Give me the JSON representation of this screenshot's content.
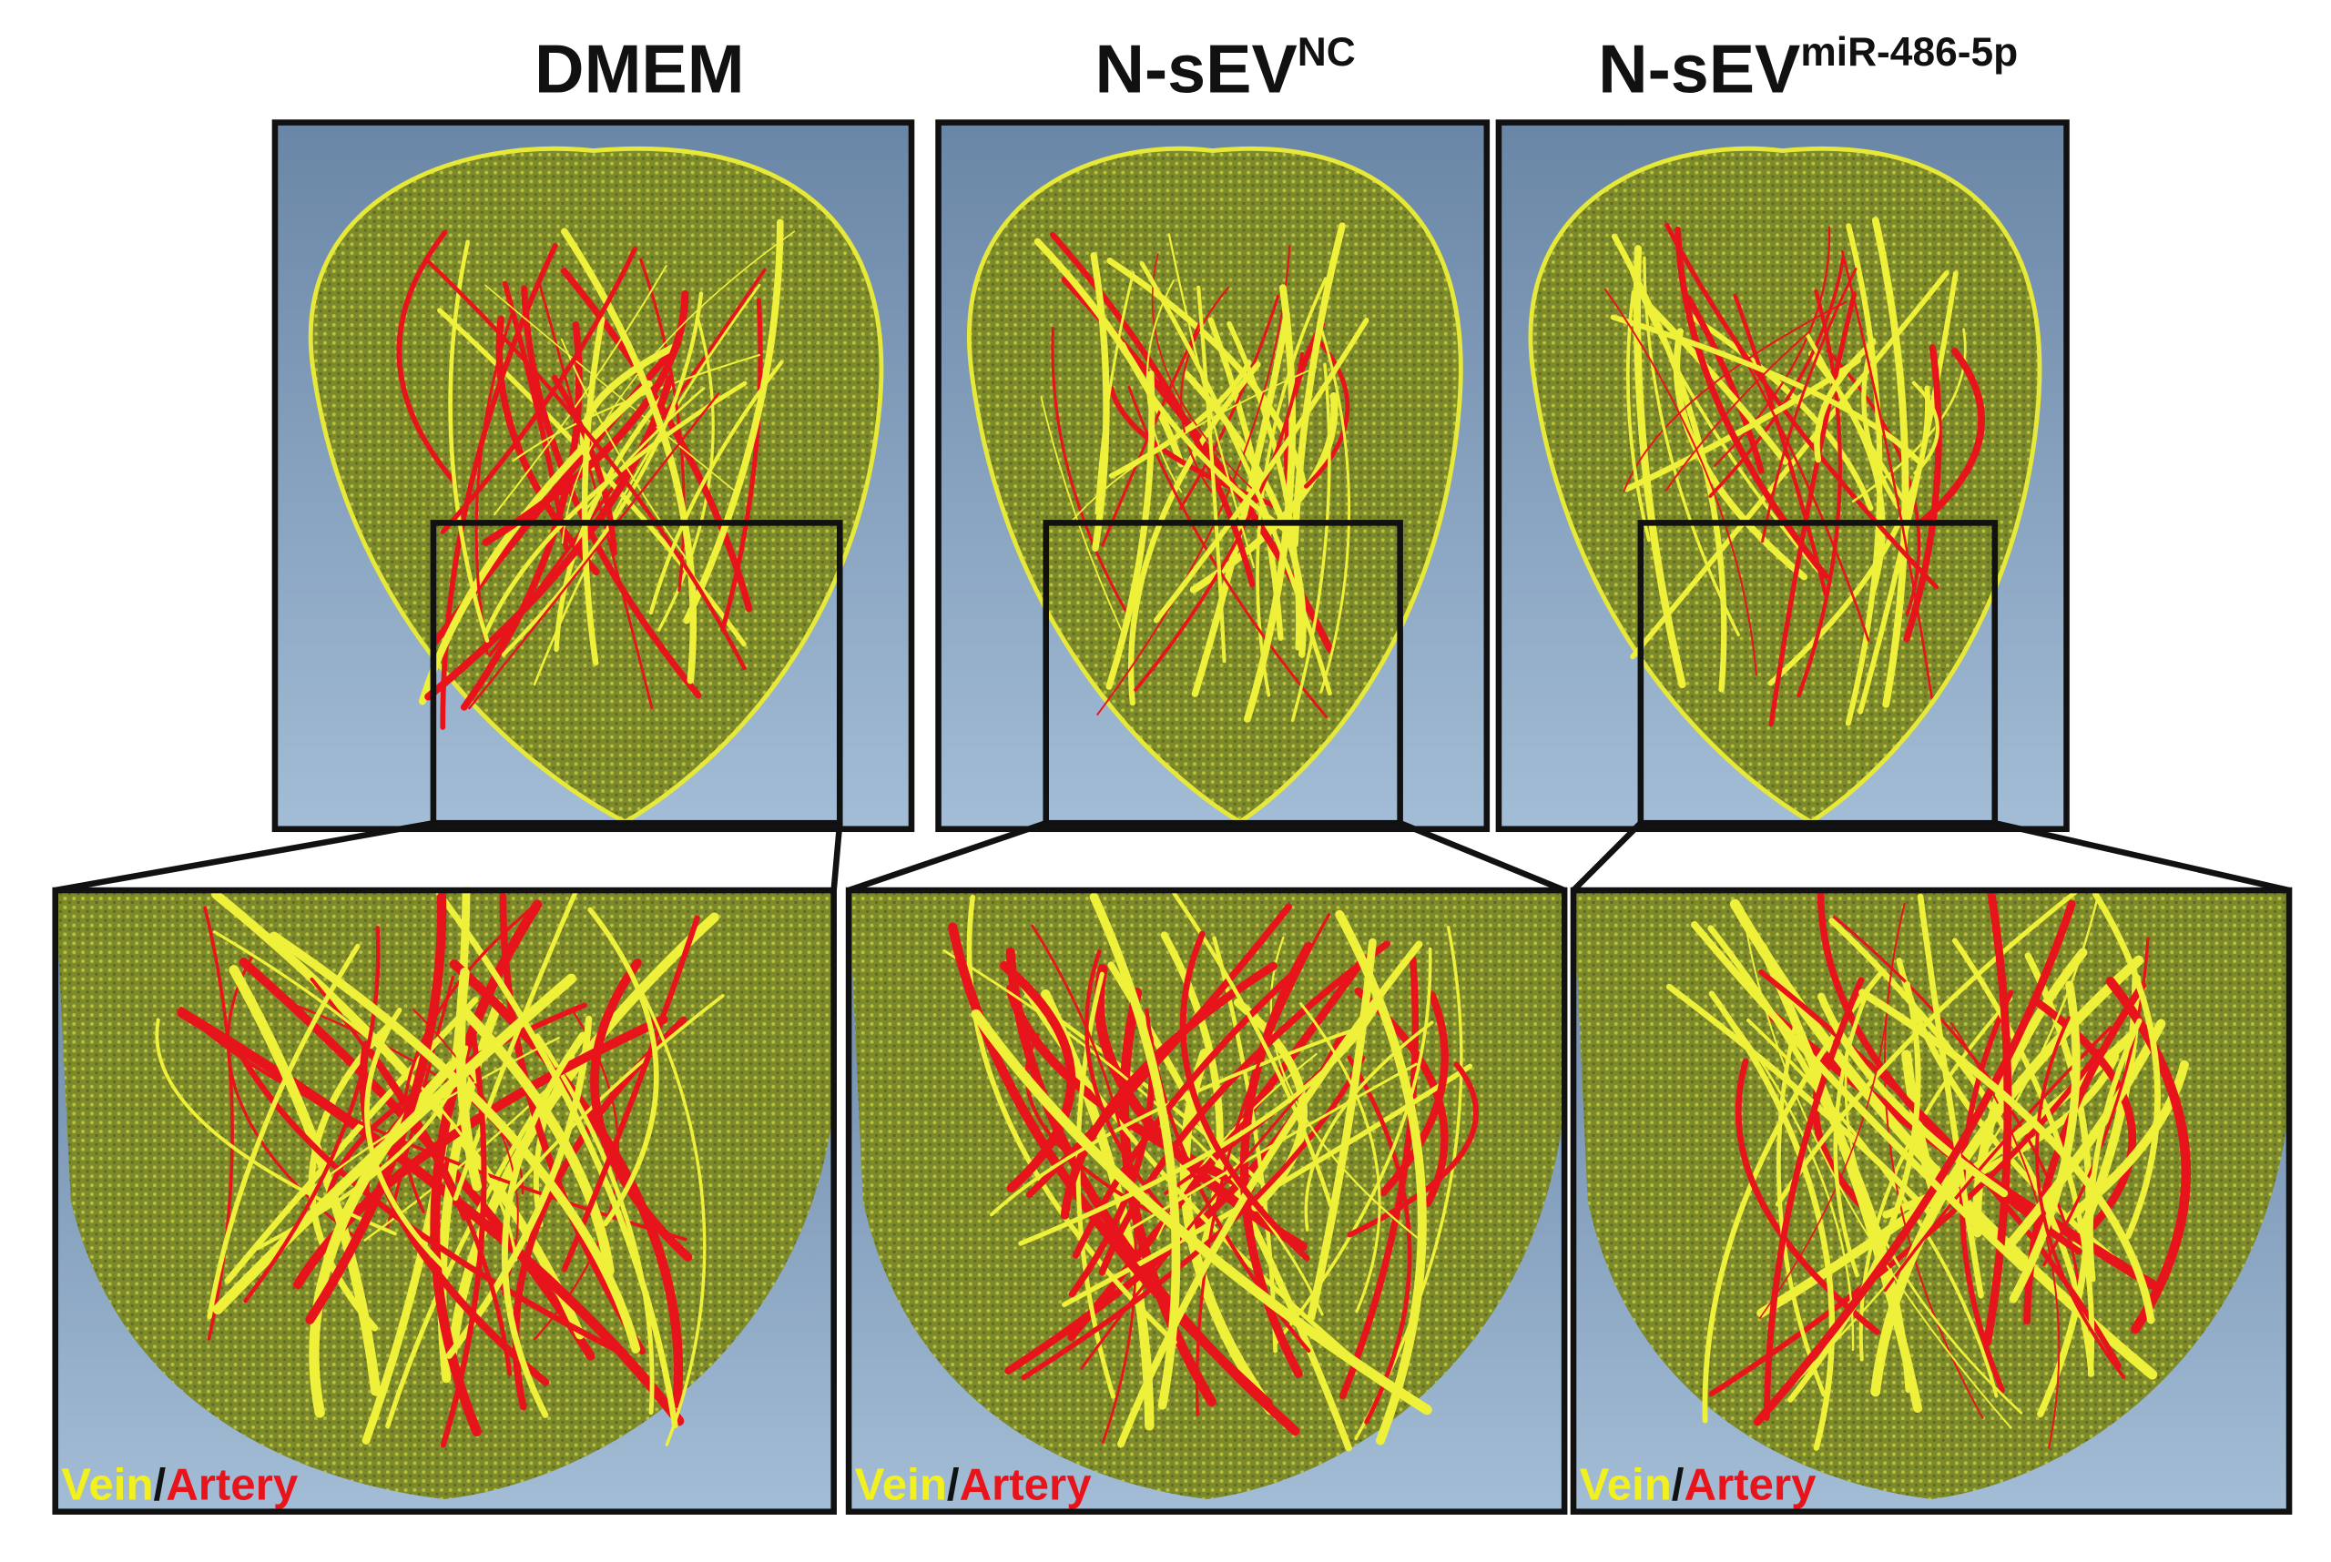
{
  "titles": [
    {
      "main": "DMEM"
    },
    {
      "main": "N-sEV",
      "sup": "NC"
    },
    {
      "main": "N-sEV",
      "sup": "miR-486-5p"
    }
  ],
  "legends": [
    {
      "vein": "Vein",
      "sep": "/",
      "artery": "Artery"
    },
    {
      "vein": "Vein",
      "sep": "/",
      "artery": "Artery"
    },
    {
      "vein": "Vein",
      "sep": "/",
      "artery": "Artery"
    }
  ]
}
